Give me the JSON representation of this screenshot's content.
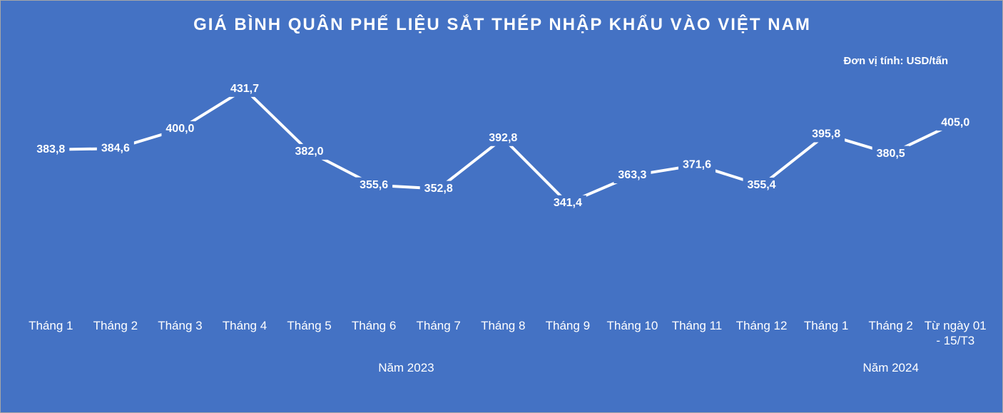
{
  "chart_data": {
    "type": "line",
    "title": "GIÁ BÌNH QUÂN PHẾ LIỆU SẮT THÉP NHẬP KHẨU VÀO VIỆT NAM",
    "unit_note": "Đơn vị tính: USD/tấn",
    "categories": [
      "Tháng 1",
      "Tháng 2",
      "Tháng 3",
      "Tháng 4",
      "Tháng 5",
      "Tháng 6",
      "Tháng 7",
      "Tháng 8",
      "Tháng 9",
      "Tháng 10",
      "Tháng 11",
      "Tháng 12",
      "Tháng 1",
      "Tháng 2",
      "Từ ngày 01 - 15/T3"
    ],
    "values": [
      383.8,
      384.6,
      400.0,
      431.7,
      382.0,
      355.6,
      352.8,
      392.8,
      341.4,
      363.3,
      371.6,
      355.4,
      395.8,
      380.5,
      405.0
    ],
    "value_labels": [
      "383,8",
      "384,6",
      "400,0",
      "431,7",
      "382,0",
      "355,6",
      "352,8",
      "392,8",
      "341,4",
      "363,3",
      "371,6",
      "355,4",
      "395,8",
      "380,5",
      "405,0"
    ],
    "groups": [
      {
        "label": "Năm 2023",
        "count": 12
      },
      {
        "label": "Năm 2024",
        "count": 3
      }
    ],
    "color": "#ffffff",
    "ylim": [
      260,
      470
    ]
  }
}
